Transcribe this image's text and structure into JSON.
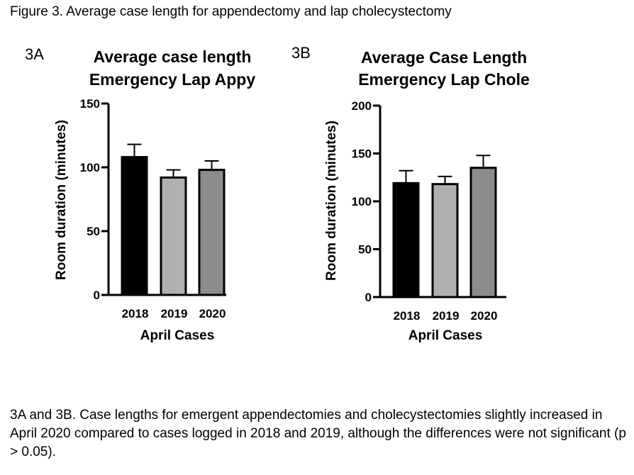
{
  "figure_title": "Figure 3. Average case length for appendectomy and lap cholecystectomy",
  "caption": "3A and 3B. Case lengths for emergent appendectomies and cholecystectomies slightly increased in April 2020 compared to cases logged in 2018 and 2019, although the differences were not significant (p > 0.05).",
  "chart_data": [
    {
      "panel": "3A",
      "type": "bar",
      "title": [
        "Average case length",
        "Emergency Lap Appy"
      ],
      "xlabel": "April Cases",
      "ylabel": "Room duration (minutes)",
      "categories": [
        "2018",
        "2019",
        "2020"
      ],
      "values": [
        108,
        92,
        98
      ],
      "error_upper": [
        118,
        98,
        105
      ],
      "ylim": [
        0,
        150
      ],
      "yticks": [
        0,
        50,
        100,
        150
      ],
      "colors": [
        "#000000",
        "#b0b0b0",
        "#8c8c8c"
      ],
      "grid": false
    },
    {
      "panel": "3B",
      "type": "bar",
      "title": [
        "Average Case Length",
        "Emergency Lap Chole"
      ],
      "xlabel": "April Cases",
      "ylabel": "Room duration (minutes)",
      "categories": [
        "2018",
        "2019",
        "2020"
      ],
      "values": [
        119,
        118,
        135
      ],
      "error_upper": [
        132,
        126,
        148
      ],
      "ylim": [
        0,
        200
      ],
      "yticks": [
        0,
        50,
        100,
        150,
        200
      ],
      "colors": [
        "#000000",
        "#b0b0b0",
        "#8c8c8c"
      ],
      "grid": false
    }
  ]
}
